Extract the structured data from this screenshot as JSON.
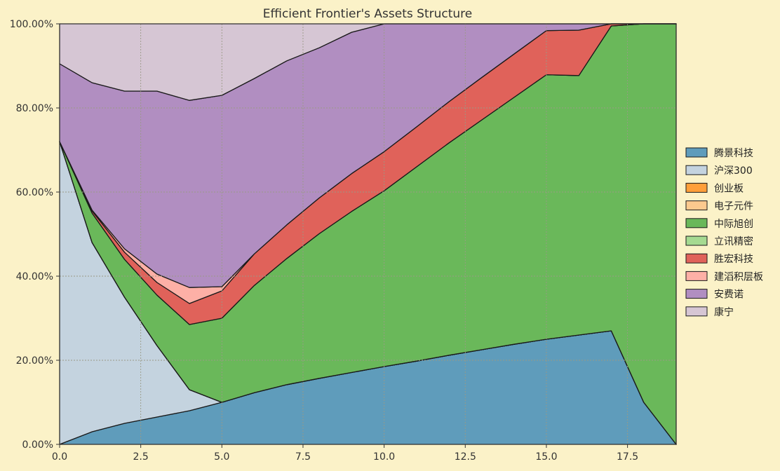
{
  "chart_data": {
    "type": "area",
    "stacked": true,
    "title": "Efficient Frontier's Assets Structure",
    "xlabel": "",
    "ylabel": "",
    "xlim": [
      0,
      19
    ],
    "ylim": [
      0,
      1
    ],
    "x_ticks": [
      0,
      2.5,
      5,
      7.5,
      10,
      12.5,
      15,
      17.5
    ],
    "x_tick_labels": [
      "0.0",
      "2.5",
      "5.0",
      "7.5",
      "10.0",
      "12.5",
      "15.0",
      "17.5"
    ],
    "y_ticks": [
      0,
      0.2,
      0.4,
      0.6,
      0.8,
      1.0
    ],
    "y_tick_labels": [
      "0.00%",
      "20.00%",
      "40.00%",
      "60.00%",
      "80.00%",
      "100.00%"
    ],
    "grid": true,
    "legend_position": "right",
    "x": [
      0,
      1,
      2,
      3,
      4,
      5,
      6,
      7,
      8,
      9,
      10,
      11,
      12,
      13,
      14,
      15,
      16,
      17,
      18,
      19
    ],
    "series": [
      {
        "name": "腾景科技",
        "color": "#5f9cbb",
        "values": [
          0,
          0.03,
          0.05,
          0.065,
          0.08,
          0.1,
          0.123,
          0.142,
          0.157,
          0.171,
          0.185,
          0.198,
          0.212,
          0.225,
          0.238,
          0.25,
          0.26,
          0.27,
          0.1,
          0
        ]
      },
      {
        "name": "沪深300",
        "color": "#c4d3df",
        "values": [
          0.72,
          0.45,
          0.3,
          0.17,
          0.05,
          0,
          0,
          0,
          0,
          0,
          0,
          0,
          0,
          0,
          0,
          0,
          0,
          0,
          0,
          0
        ]
      },
      {
        "name": "创业板",
        "color": "#ff9f3a",
        "values": [
          0,
          0,
          0,
          0,
          0,
          0,
          0,
          0,
          0,
          0,
          0,
          0,
          0,
          0,
          0,
          0,
          0,
          0,
          0,
          0
        ]
      },
      {
        "name": "电子元件",
        "color": "#fcc98e",
        "values": [
          0,
          0,
          0,
          0,
          0,
          0,
          0,
          0,
          0,
          0,
          0,
          0,
          0,
          0,
          0,
          0,
          0,
          0,
          0,
          0
        ]
      },
      {
        "name": "中际旭创",
        "color": "#6ab85a",
        "values": [
          0,
          0.07,
          0.09,
          0.12,
          0.155,
          0.2,
          0.255,
          0.3,
          0.344,
          0.383,
          0.418,
          0.462,
          0.505,
          0.546,
          0.587,
          0.629,
          0.617,
          0.725,
          0.9,
          1.0
        ]
      },
      {
        "name": "立讯精密",
        "color": "#a5da91",
        "values": [
          0,
          0,
          0,
          0,
          0,
          0,
          0,
          0,
          0,
          0,
          0,
          0,
          0,
          0,
          0,
          0,
          0,
          0,
          0,
          0
        ]
      },
      {
        "name": "胜宏科技",
        "color": "#e0625a",
        "values": [
          0,
          0.005,
          0.017,
          0.03,
          0.05,
          0.065,
          0.075,
          0.08,
          0.085,
          0.09,
          0.093,
          0.095,
          0.098,
          0.101,
          0.103,
          0.105,
          0.108,
          0.005,
          0,
          0
        ]
      },
      {
        "name": "建滔积层板",
        "color": "#fdb0a6",
        "values": [
          0,
          0.002,
          0.008,
          0.02,
          0.038,
          0.01,
          0,
          0,
          0,
          0,
          0,
          0,
          0,
          0,
          0,
          0,
          0,
          0,
          0,
          0
        ]
      },
      {
        "name": "安费诺",
        "color": "#b18ec1",
        "values": [
          0.185,
          0.303,
          0.375,
          0.435,
          0.445,
          0.455,
          0.417,
          0.39,
          0.357,
          0.336,
          0.304,
          0.245,
          0.185,
          0.128,
          0.072,
          0.016,
          0.015,
          0,
          0,
          0
        ]
      },
      {
        "name": "康宁",
        "color": "#d6c6d4",
        "values": [
          0.095,
          0.14,
          0.16,
          0.18,
          0.182,
          0.17,
          0.13,
          0.088,
          0.057,
          0.02,
          0,
          0,
          0,
          0,
          0,
          0,
          0,
          0,
          0,
          0
        ]
      }
    ]
  }
}
